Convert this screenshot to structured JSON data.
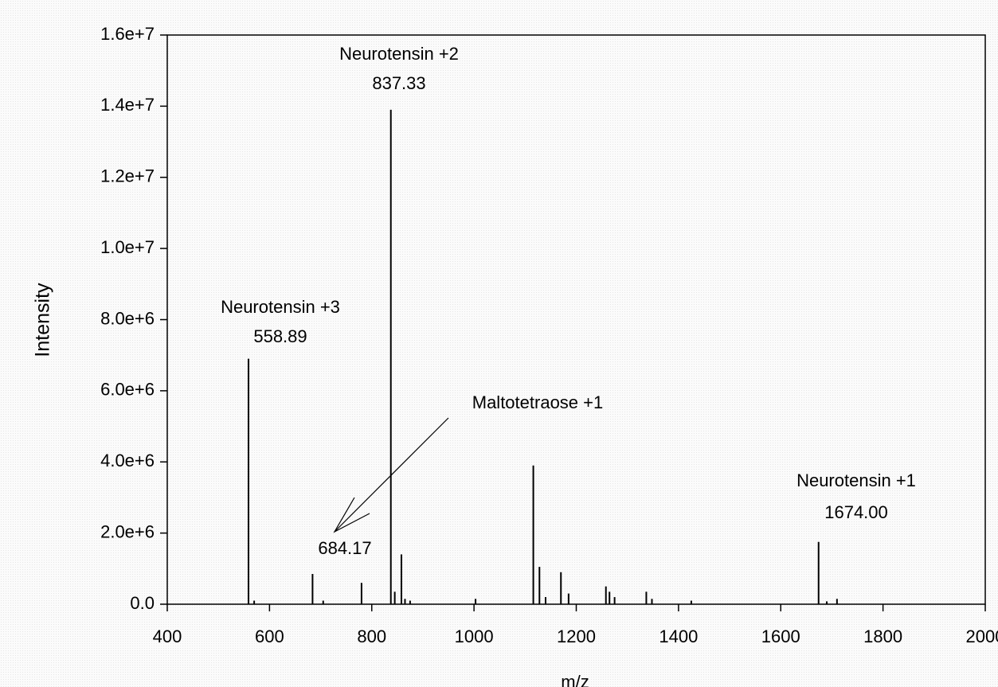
{
  "chart_data": {
    "type": "stem",
    "xlabel": "m/z",
    "ylabel": "Intensity",
    "x": [
      558.89,
      570,
      684.17,
      705,
      780,
      837.33,
      845,
      858,
      865,
      875,
      1003,
      1116,
      1128,
      1140,
      1170,
      1185,
      1258,
      1265,
      1275,
      1337,
      1348,
      1425,
      1674.0,
      1690,
      1710
    ],
    "values": [
      6900000,
      100000,
      850000,
      100000,
      600000,
      13900000,
      350000,
      1400000,
      150000,
      100000,
      150000,
      3900000,
      1050000,
      200000,
      900000,
      300000,
      500000,
      350000,
      200000,
      350000,
      150000,
      100000,
      1750000,
      80000,
      150000
    ],
    "color": "#000000",
    "xlim": [
      400,
      2000
    ],
    "xticks": [
      400,
      600,
      800,
      1000,
      1200,
      1400,
      1600,
      1800,
      2000
    ],
    "ylim": [
      0,
      16000000
    ],
    "yticks": [
      {
        "value": 0,
        "label": "0.0"
      },
      {
        "value": 2000000,
        "label": "2.0e+6"
      },
      {
        "value": 4000000,
        "label": "4.0e+6"
      },
      {
        "value": 6000000,
        "label": "6.0e+6"
      },
      {
        "value": 8000000,
        "label": "8.0e+6"
      },
      {
        "value": 10000000,
        "label": "1.0e+7"
      },
      {
        "value": 12000000,
        "label": "1.2e+7"
      },
      {
        "value": 14000000,
        "label": "1.4e+7"
      },
      {
        "value": 16000000,
        "label": "1.6e+7"
      }
    ],
    "annotations": [
      {
        "text": "Neurotensin +3",
        "mz": "558.89"
      },
      {
        "text": "Neurotensin +2",
        "mz": "837.33"
      },
      {
        "text": "Maltotetraose +1",
        "mz": "684.17"
      },
      {
        "text": "Neurotensin +1",
        "mz": "1674.00"
      }
    ]
  }
}
